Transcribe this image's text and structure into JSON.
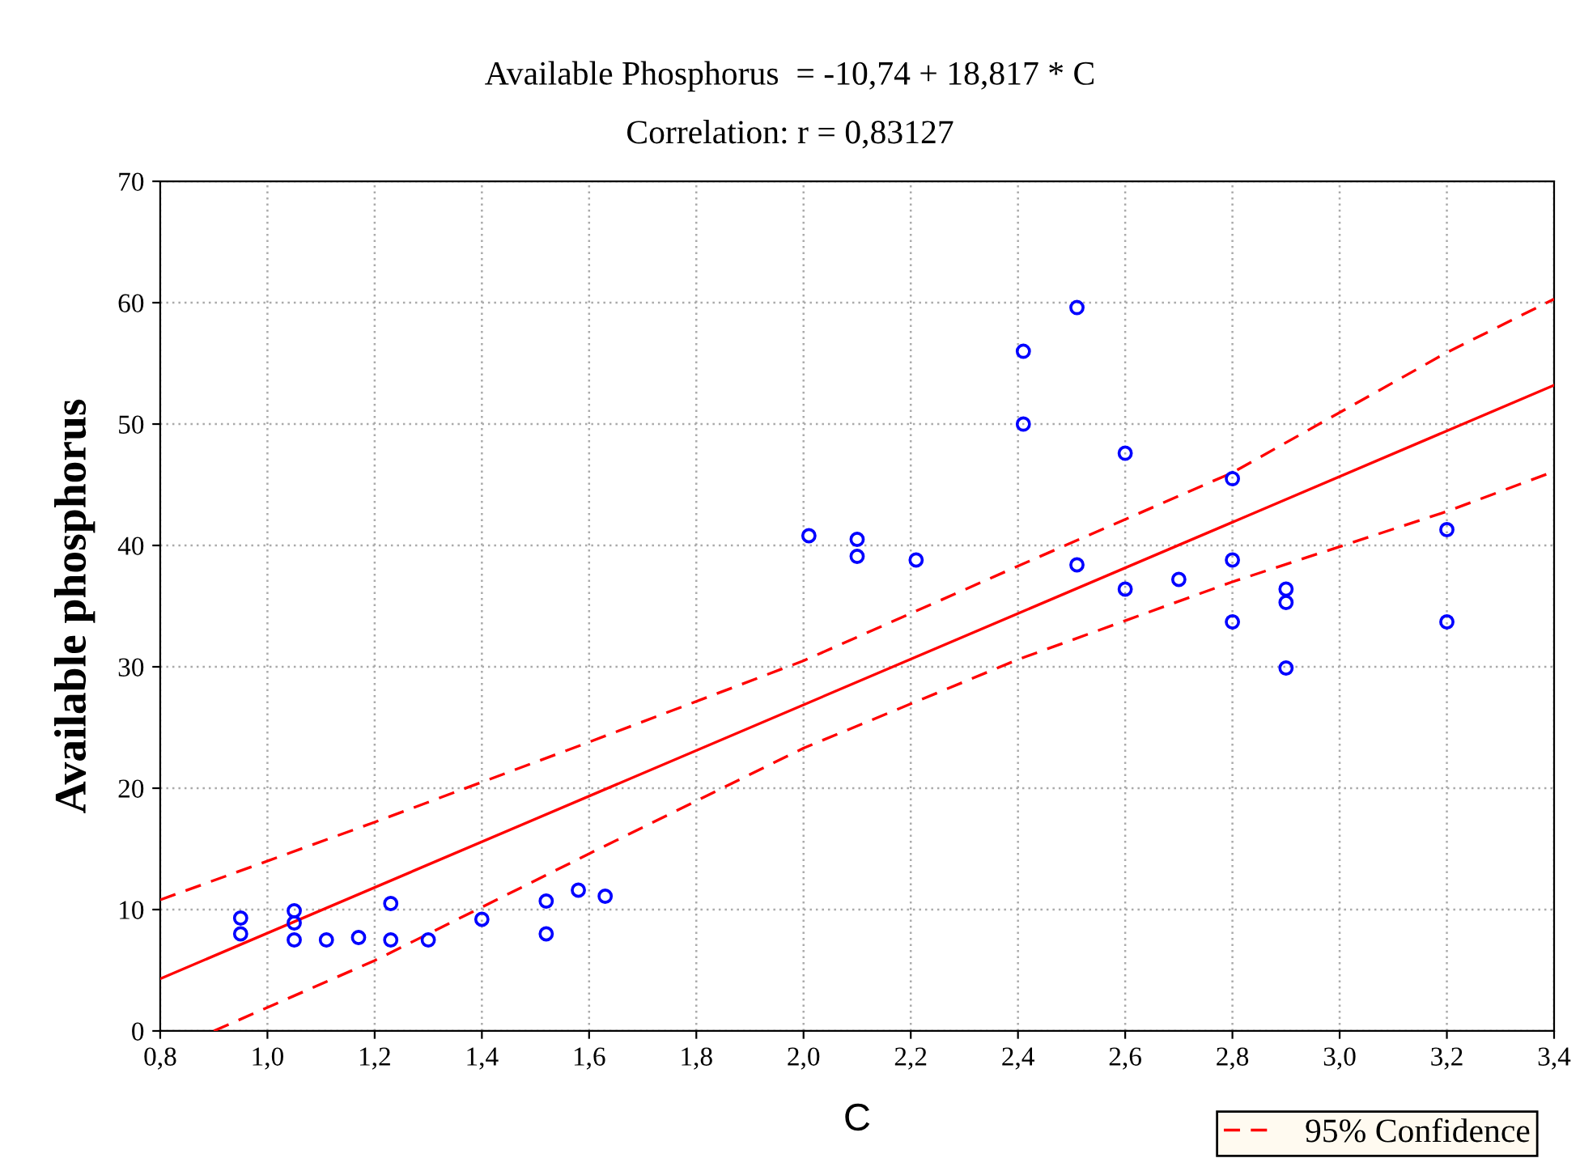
{
  "chart_data": {
    "type": "scatter",
    "title": "Available Phosphorus  = -10,74 + 18,817 * C",
    "subtitle": "Correlation: r = 0,83127",
    "xlabel": "C",
    "ylabel": "Available phosphorus",
    "xlim": [
      0.8,
      3.4
    ],
    "ylim": [
      0,
      70
    ],
    "xticks": [
      {
        "value": 0.8,
        "label": "0,8"
      },
      {
        "value": 1.0,
        "label": "1,0"
      },
      {
        "value": 1.2,
        "label": "1,2"
      },
      {
        "value": 1.4,
        "label": "1,4"
      },
      {
        "value": 1.6,
        "label": "1,6"
      },
      {
        "value": 1.8,
        "label": "1,8"
      },
      {
        "value": 2.0,
        "label": "2,0"
      },
      {
        "value": 2.2,
        "label": "2,2"
      },
      {
        "value": 2.4,
        "label": "2,4"
      },
      {
        "value": 2.6,
        "label": "2,6"
      },
      {
        "value": 2.8,
        "label": "2,8"
      },
      {
        "value": 3.0,
        "label": "3,0"
      },
      {
        "value": 3.2,
        "label": "3,2"
      },
      {
        "value": 3.4,
        "label": "3,4"
      }
    ],
    "yticks": [
      0,
      10,
      20,
      30,
      40,
      50,
      60,
      70
    ],
    "grid": true,
    "legend": "bottom right",
    "marker": "circle",
    "series": [
      {
        "color": "#0000ff",
        "x": [
          0.95,
          0.95,
          1.05,
          1.05,
          1.05,
          1.11,
          1.17,
          1.23,
          1.23,
          1.3,
          1.4,
          1.52,
          1.52,
          1.58,
          1.63,
          2.01,
          2.1,
          2.1,
          2.21,
          2.41,
          2.41,
          2.51,
          2.51,
          2.6,
          2.6,
          2.7,
          2.8,
          2.8,
          2.8,
          2.9,
          2.9,
          2.9,
          3.2,
          3.2
        ],
        "values": [
          9.3,
          8.0,
          9.9,
          8.9,
          7.5,
          7.5,
          7.7,
          10.5,
          7.5,
          7.5,
          9.2,
          10.7,
          8.0,
          11.6,
          11.1,
          40.8,
          40.5,
          39.1,
          38.8,
          56.0,
          50.0,
          59.6,
          38.4,
          47.6,
          36.4,
          37.2,
          45.5,
          38.8,
          33.7,
          36.4,
          35.3,
          29.9,
          41.3,
          33.7
        ]
      },
      {
        "type": "line",
        "color": "#ff0000",
        "line_style": "solid",
        "marker": "none",
        "x": [
          0.8,
          3.4
        ],
        "values": [
          4.3,
          53.2
        ]
      },
      {
        "type": "line",
        "name": "95% Confidence",
        "color": "#ff0000",
        "line_style": "dashed",
        "marker": "none",
        "x": [
          0.8,
          1.2,
          1.6,
          2.0,
          2.4,
          2.8,
          3.2,
          3.4
        ],
        "values": [
          10.8,
          17.2,
          23.8,
          30.5,
          38.3,
          46.0,
          55.9,
          60.3
        ]
      },
      {
        "type": "line",
        "color": "#ff0000",
        "line_style": "dashed",
        "marker": "none",
        "x": [
          0.9,
          1.2,
          1.6,
          2.0,
          2.4,
          2.8,
          3.2,
          3.4
        ],
        "values": [
          0,
          5.8,
          14.6,
          23.3,
          30.6,
          37.0,
          42.8,
          46.1
        ]
      }
    ]
  }
}
